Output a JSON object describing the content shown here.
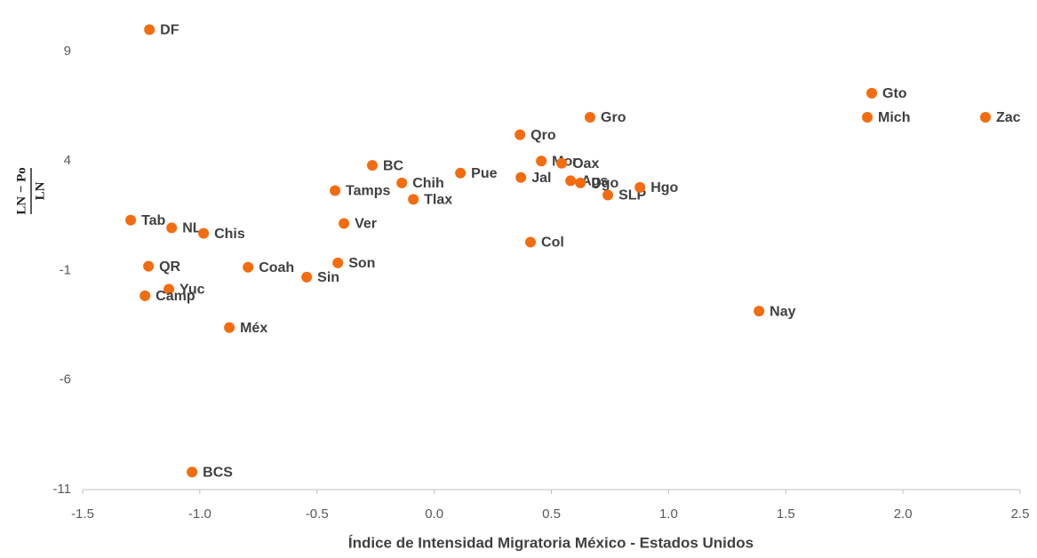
{
  "chart_data": {
    "type": "scatter",
    "x_label": "Índice de Intensidad Migratoria México - Estados Unidos",
    "y_label": {
      "numerator": "LN − Po",
      "denominator": "LN"
    },
    "labels": [
      "DF",
      "Gto",
      "Mich",
      "Zac",
      "Gro",
      "Qro",
      "Mor",
      "Oax",
      "BC",
      "Pue",
      "Jal",
      "Ags",
      "Dgo",
      "SLP",
      "Hgo",
      "Chih",
      "Tamps",
      "Tlax",
      "Tab",
      "NL",
      "Chis",
      "Ver",
      "Col",
      "Son",
      "QR",
      "Coah",
      "Sin",
      "Yuc",
      "Camp",
      "Nay",
      "Méx",
      "BCS"
    ],
    "x": [
      -1.215,
      1.867,
      1.848,
      2.352,
      0.665,
      0.366,
      0.457,
      0.544,
      -0.264,
      0.112,
      0.37,
      0.582,
      0.624,
      0.741,
      0.878,
      -0.138,
      -0.423,
      -0.089,
      -1.295,
      -1.12,
      -0.984,
      -0.385,
      0.411,
      -0.411,
      -1.219,
      -0.794,
      -0.544,
      -1.132,
      -1.234,
      1.386,
      -0.874,
      -1.033
    ],
    "y": [
      10.0,
      7.1,
      6.0,
      6.0,
      6.0,
      5.2,
      4.0,
      3.9,
      3.8,
      3.45,
      3.25,
      3.1,
      3.0,
      2.45,
      2.8,
      3.0,
      2.65,
      2.25,
      1.3,
      0.95,
      0.7,
      1.15,
      0.3,
      -0.65,
      -0.8,
      -0.85,
      -1.3,
      -1.85,
      -2.15,
      -2.85,
      -3.6,
      -10.2
    ],
    "color": "#f36c0f",
    "xlim": [
      -1.5,
      2.5
    ],
    "xticks": [
      -1.5,
      {
        "value": -1.0,
        "label": "-1.0"
      },
      -0.5,
      {
        "value": 0,
        "label": "0.0"
      },
      0.5,
      {
        "value": 1,
        "label": "1.0"
      },
      1.5,
      {
        "value": 2,
        "label": "2.0"
      },
      2.5
    ],
    "ylim": [
      -11,
      11
    ],
    "yticks": [
      -11,
      -6,
      -1,
      4,
      9
    ],
    "grid": false
  }
}
